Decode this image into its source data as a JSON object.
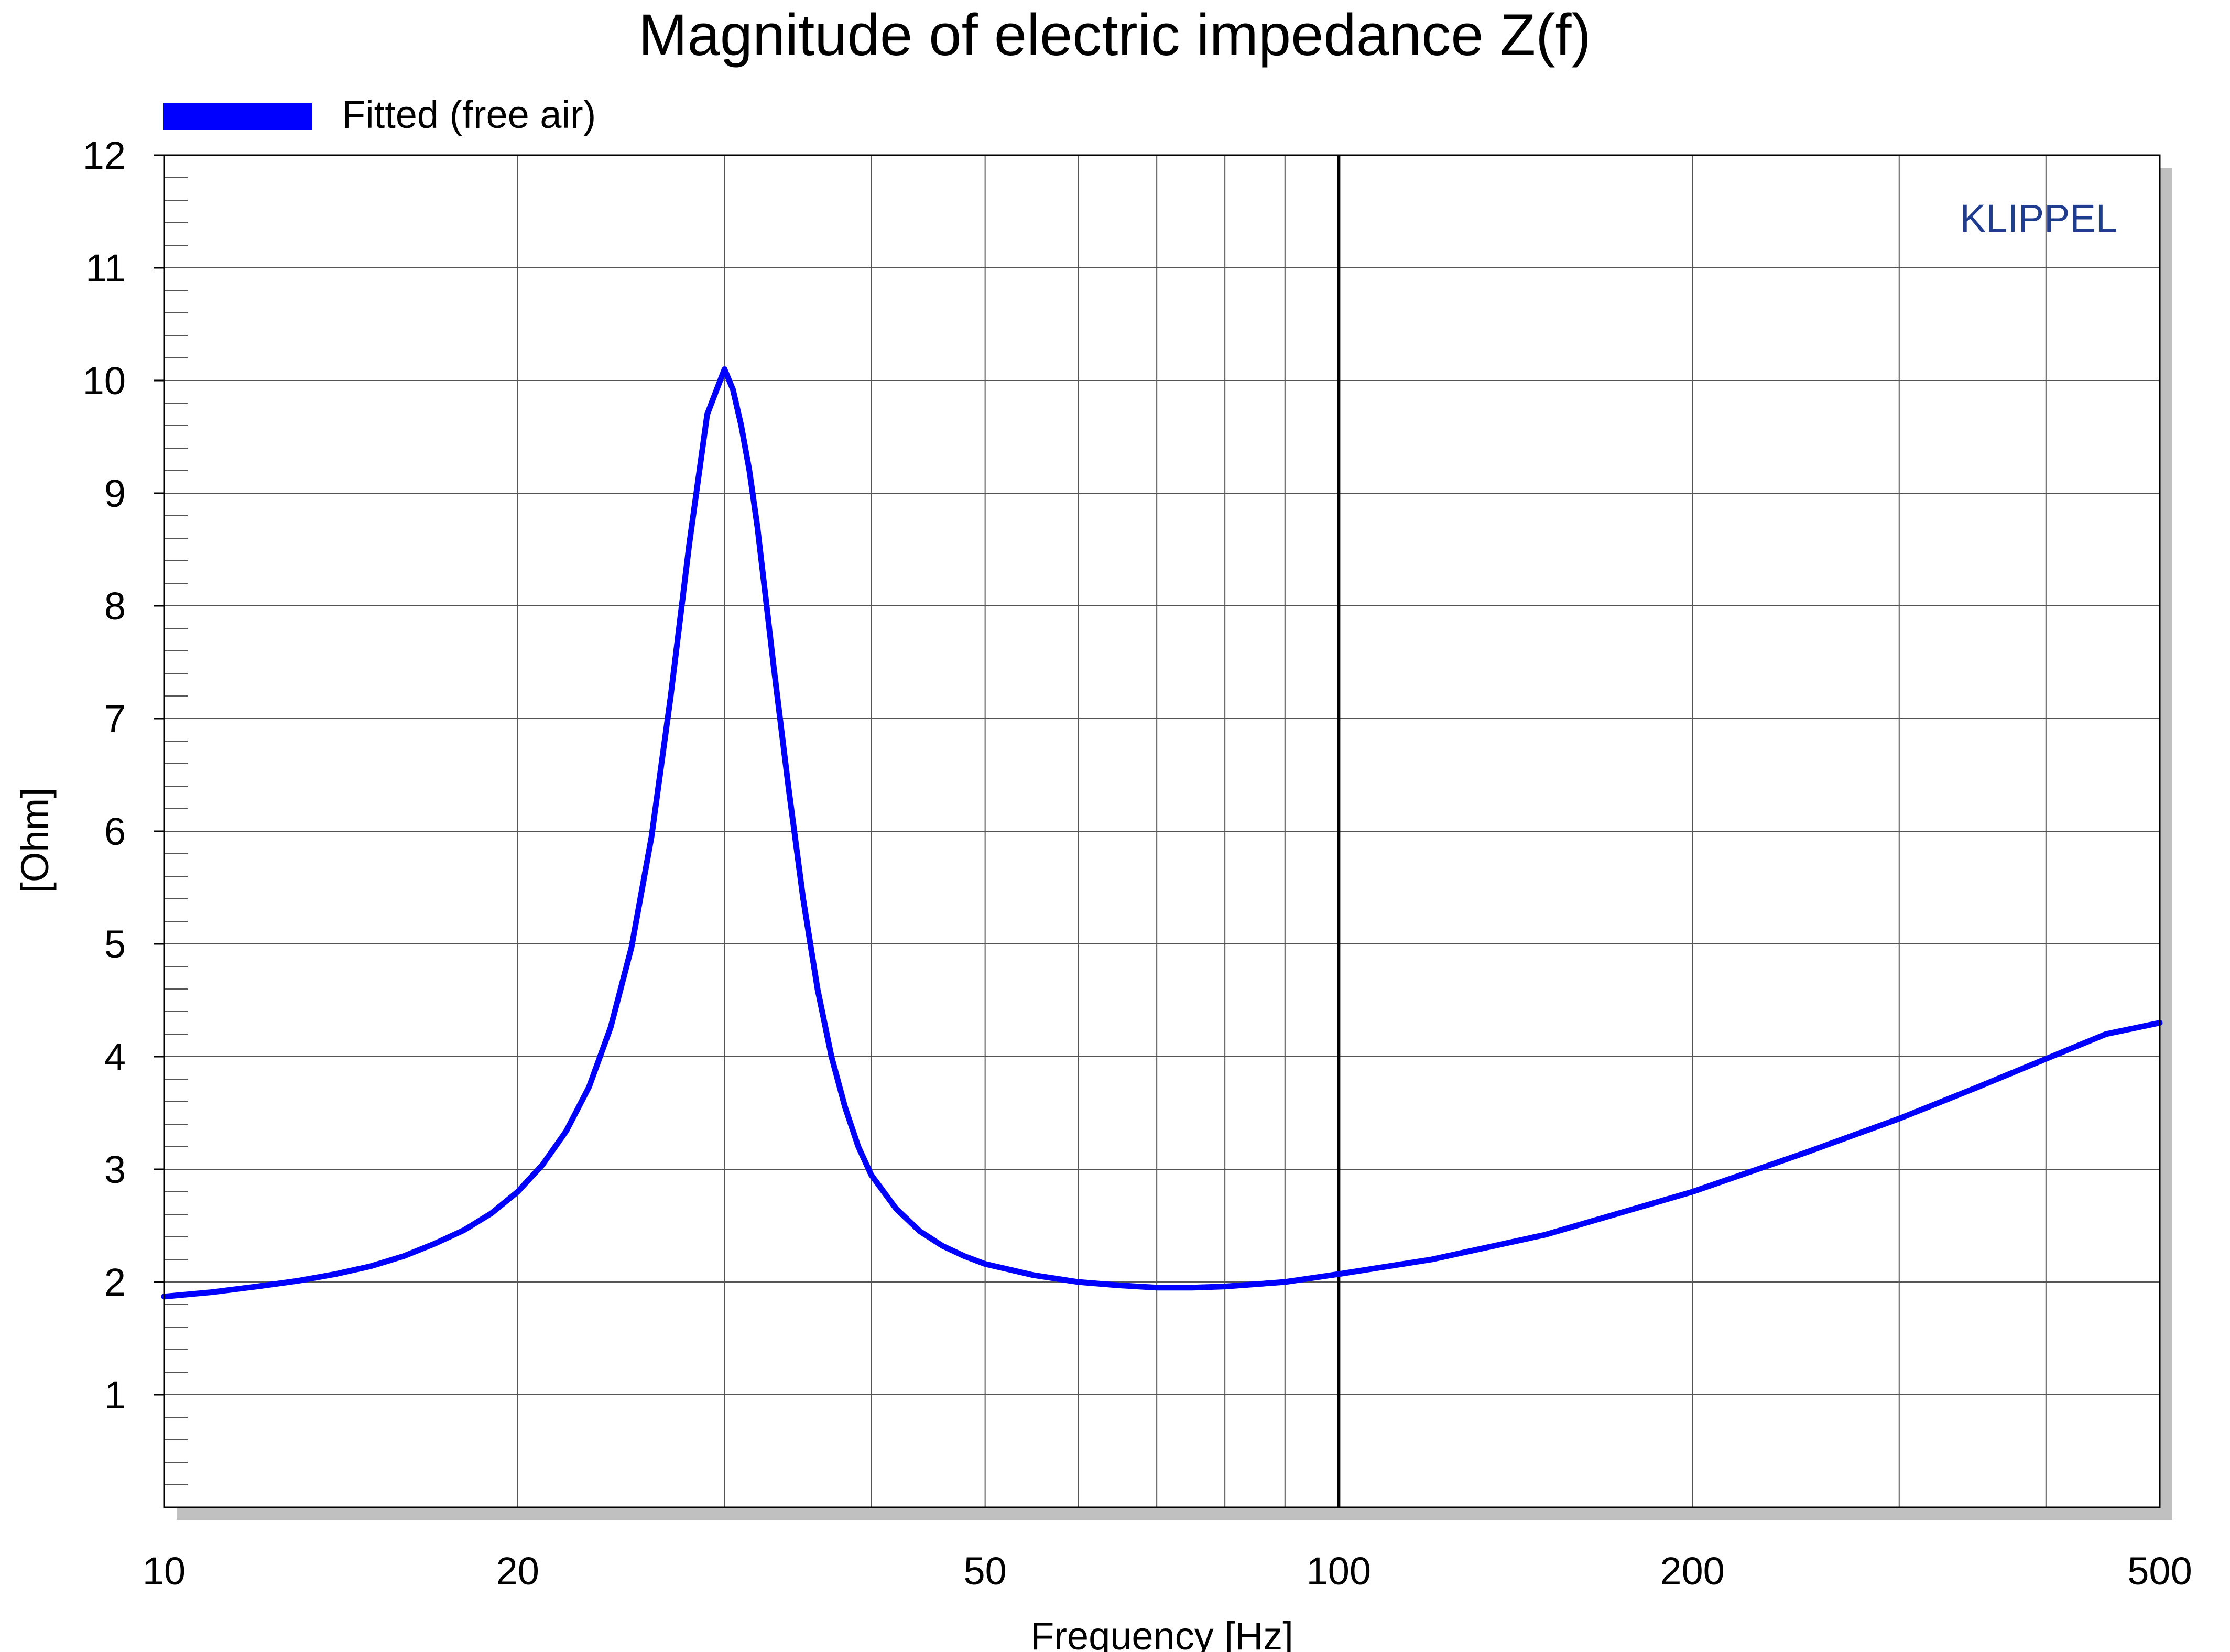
{
  "chart_data": {
    "type": "line",
    "title": "Magnitude of electric impedance Z(f)",
    "xlabel": "Frequency [Hz]",
    "ylabel": "[Ohm]",
    "x_scale": "log",
    "xlim": [
      10,
      500
    ],
    "ylim": [
      0,
      12
    ],
    "x_ticks": [
      10,
      20,
      50,
      100,
      200,
      500
    ],
    "x_tick_labels": [
      "10",
      "20",
      "50",
      "100",
      "200",
      "500"
    ],
    "y_ticks": [
      1,
      2,
      3,
      4,
      5,
      6,
      7,
      8,
      9,
      10,
      11,
      12
    ],
    "y_tick_labels": [
      "1",
      "2",
      "3",
      "4",
      "5",
      "6",
      "7",
      "8",
      "9",
      "10",
      "11",
      "12"
    ],
    "x_grid": [
      20,
      30,
      40,
      50,
      60,
      70,
      80,
      90,
      100,
      200,
      300,
      400
    ],
    "grid": true,
    "legend_position": "top-left",
    "brand": "KLIPPEL",
    "marker_x": 100,
    "series": [
      {
        "name": "Fitted (free air)",
        "color": "#0000ff",
        "x": [
          10,
          11,
          12,
          13,
          14,
          15,
          16,
          17,
          18,
          19,
          20,
          21,
          22,
          23,
          24,
          25,
          26,
          27,
          28,
          29,
          30,
          30.5,
          31,
          31.5,
          32,
          32.5,
          33,
          34,
          35,
          36,
          37,
          38,
          39,
          40,
          42,
          44,
          46,
          48,
          50,
          55,
          60,
          65,
          70,
          75,
          80,
          90,
          100,
          120,
          150,
          200,
          250,
          300,
          350,
          400,
          450,
          500
        ],
        "y": [
          1.87,
          1.91,
          1.96,
          2.01,
          2.07,
          2.14,
          2.23,
          2.34,
          2.46,
          2.61,
          2.8,
          3.04,
          3.34,
          3.73,
          4.26,
          4.97,
          5.95,
          7.2,
          8.55,
          9.7,
          10.1,
          9.92,
          9.6,
          9.2,
          8.7,
          8.1,
          7.5,
          6.4,
          5.4,
          4.6,
          4.0,
          3.55,
          3.2,
          2.95,
          2.65,
          2.45,
          2.32,
          2.23,
          2.16,
          2.06,
          2.0,
          1.97,
          1.95,
          1.95,
          1.96,
          2.0,
          2.07,
          2.2,
          2.42,
          2.8,
          3.15,
          3.45,
          3.73,
          3.98,
          4.2,
          4.3
        ]
      }
    ]
  }
}
